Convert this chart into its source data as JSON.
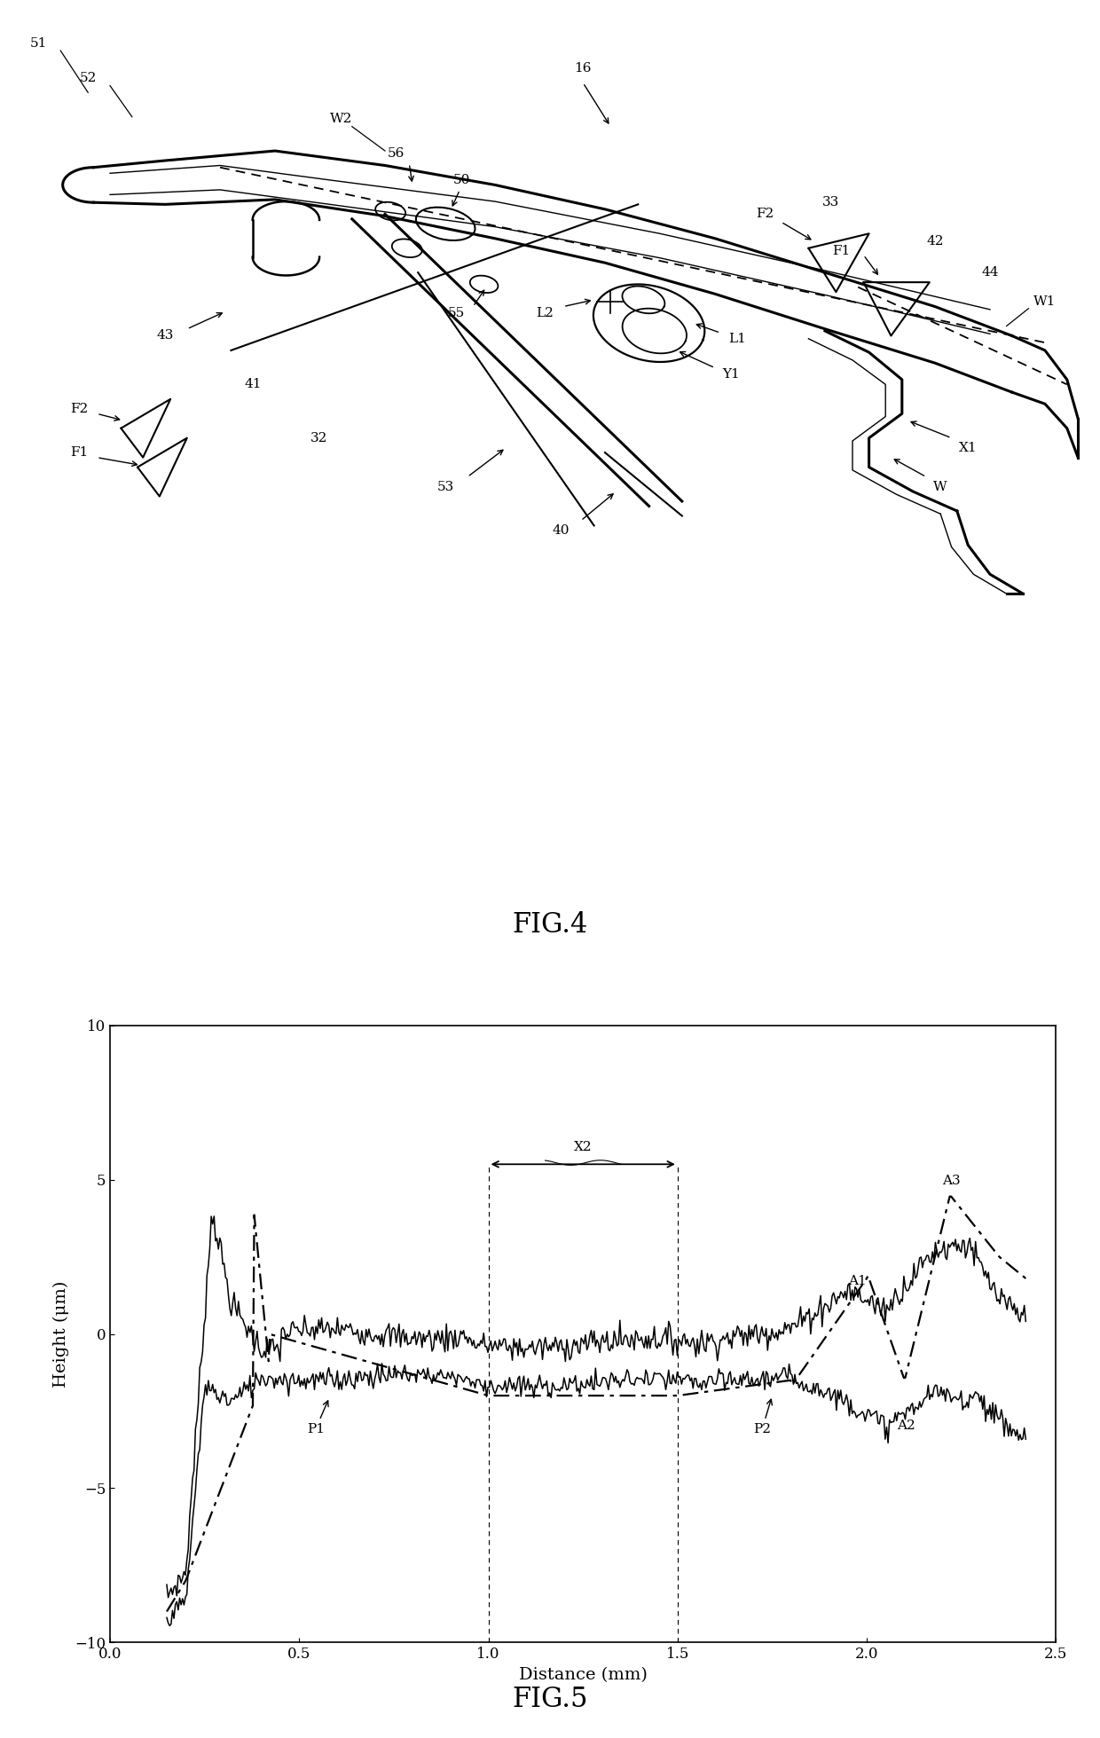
{
  "fig4_title": "FIG.4",
  "fig5_title": "FIG.5",
  "bg_color": "#ffffff",
  "graph": {
    "xlabel": "Distance (mm)",
    "ylabel": "Height (μm)",
    "xlim": [
      0,
      2.5
    ],
    "ylim": [
      -10,
      10
    ],
    "xticks": [
      0,
      0.5,
      1.0,
      1.5,
      2.0,
      2.5
    ],
    "yticks": [
      -10,
      -5,
      0,
      5,
      10
    ]
  }
}
